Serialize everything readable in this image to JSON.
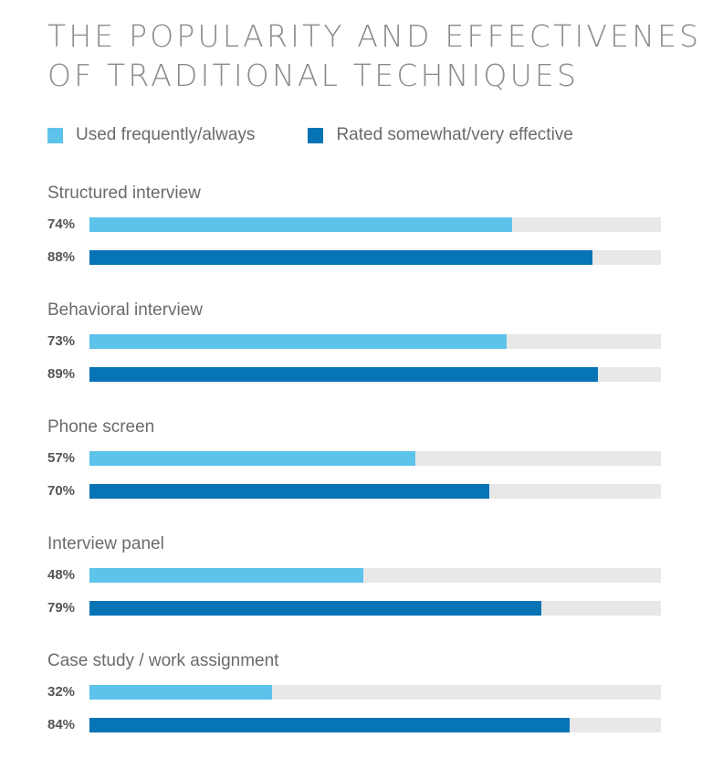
{
  "title_lines": [
    "THE POPULARITY AND EFFECTIVENESS",
    "OF TRADITIONAL TECHNIQUES"
  ],
  "colors": {
    "used": "#5ec3ea",
    "rated": "#0774b5",
    "track": "#e8e8e8"
  },
  "chart_data": {
    "type": "bar",
    "orientation": "horizontal",
    "categories": [
      "Structured interview",
      "Behavioral interview",
      "Phone screen",
      "Interview panel",
      "Case study / work assignment"
    ],
    "series": [
      {
        "name": "Used frequently/always",
        "values": [
          74,
          73,
          57,
          48,
          32
        ],
        "labels": [
          "74%",
          "73%",
          "57%",
          "48%",
          "32%"
        ]
      },
      {
        "name": "Rated somewhat/very effective",
        "values": [
          88,
          89,
          70,
          79,
          84
        ],
        "labels": [
          "88%",
          "89%",
          "70%",
          "79%",
          "84%"
        ]
      }
    ],
    "xlim": [
      0,
      100
    ],
    "legend": "top-left",
    "grid": false
  }
}
